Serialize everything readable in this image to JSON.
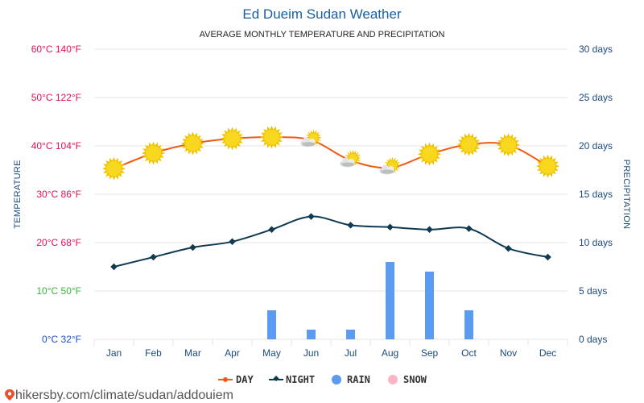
{
  "header": {
    "title": "Ed Dueim Sudan Weather",
    "subtitle": "AVERAGE MONTHLY TEMPERATURE AND PRECIPITATION"
  },
  "axes": {
    "left_title": "TEMPERATURE",
    "right_title": "PRECIPITATION",
    "left_ticks": [
      {
        "label": "60°C 140°F",
        "color": "#e0105a"
      },
      {
        "label": "50°C 122°F",
        "color": "#e0105a"
      },
      {
        "label": "40°C 104°F",
        "color": "#e0105a"
      },
      {
        "label": "30°C 86°F",
        "color": "#e0105a"
      },
      {
        "label": "20°C 68°F",
        "color": "#e0105a"
      },
      {
        "label": "10°C 50°F",
        "color": "#3cb43c"
      },
      {
        "label": "0°C 32°F",
        "color": "#1a4fd0"
      }
    ],
    "right_ticks": [
      "30 days",
      "25 days",
      "20 days",
      "15 days",
      "10 days",
      "5 days",
      "0 days"
    ]
  },
  "legend": {
    "day": "DAY",
    "night": "NIGHT",
    "rain": "RAIN",
    "snow": "SNOW"
  },
  "footer": {
    "source": "hikersby.com/climate/sudan/addouiem"
  },
  "colors": {
    "day_line": "#f05a14",
    "night_line": "#0f3a52",
    "rain": "#5b9cf2",
    "snow": "#ffb3c6",
    "grid": "#e6e6e6",
    "month_label": "#1a4a7a",
    "right_tick": "#1a4a7a",
    "sun": "#f7d81e"
  },
  "chart_data": {
    "type": "line",
    "categories": [
      "Jan",
      "Feb",
      "Mar",
      "Apr",
      "May",
      "Jun",
      "Jul",
      "Aug",
      "Sep",
      "Oct",
      "Nov",
      "Dec"
    ],
    "series": [
      {
        "name": "DAY",
        "axis": "temperature",
        "unit": "°C",
        "values": [
          35.3,
          38.5,
          40.5,
          41.5,
          41.8,
          41.2,
          37.0,
          35.5,
          38.3,
          40.3,
          40.2,
          35.8
        ]
      },
      {
        "name": "NIGHT",
        "axis": "temperature",
        "unit": "°C",
        "values": [
          15.0,
          17.0,
          19.0,
          20.2,
          22.7,
          25.4,
          23.6,
          23.2,
          22.7,
          22.9,
          18.8,
          17.0
        ]
      },
      {
        "name": "RAIN",
        "axis": "precipitation",
        "unit": "days",
        "type": "bar",
        "values": [
          0,
          0,
          0,
          0,
          3,
          1,
          1,
          8,
          7,
          3,
          0,
          0
        ]
      },
      {
        "name": "SNOW",
        "axis": "precipitation",
        "unit": "days",
        "type": "bar",
        "values": [
          0,
          0,
          0,
          0,
          0,
          0,
          0,
          0,
          0,
          0,
          0,
          0
        ]
      }
    ],
    "weather_icons": [
      "sun",
      "sun",
      "sun",
      "sun",
      "sun",
      "sun-cloud",
      "sun-cloud",
      "sun-cloud",
      "sun",
      "sun",
      "sun",
      "sun"
    ],
    "ylim_temperature": [
      0,
      60
    ],
    "ylim_precipitation": [
      0,
      30
    ],
    "grid": true,
    "legend_position": "bottom-center"
  }
}
